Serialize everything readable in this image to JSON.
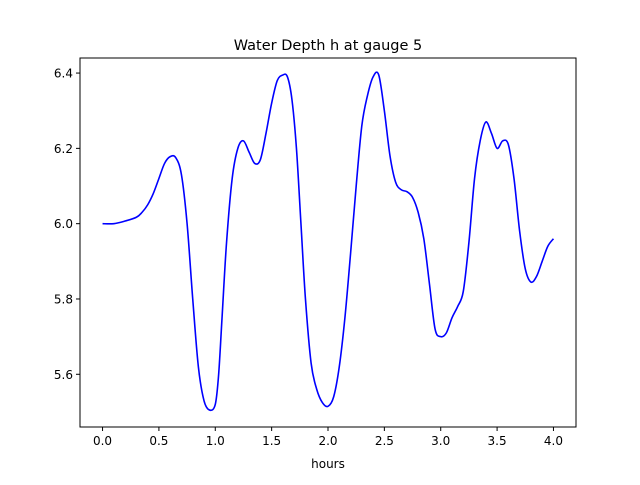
{
  "chart_data": {
    "type": "line",
    "title": "Water Depth h at gauge 5",
    "xlabel": "hours",
    "ylabel": "",
    "xlim": [
      -0.2,
      4.2
    ],
    "ylim": [
      5.46,
      6.44
    ],
    "x_ticks": [
      0.0,
      0.5,
      1.0,
      1.5,
      2.0,
      2.5,
      3.0,
      3.5,
      4.0
    ],
    "x_tick_labels": [
      "0.0",
      "0.5",
      "1.0",
      "1.5",
      "2.0",
      "2.5",
      "3.0",
      "3.5",
      "4.0"
    ],
    "y_ticks": [
      5.6,
      5.8,
      6.0,
      6.2,
      6.4
    ],
    "y_tick_labels": [
      "5.6",
      "5.8",
      "6.0",
      "6.2",
      "6.4"
    ],
    "grid": false,
    "legend": "none",
    "series": [
      {
        "color": "#0000ff",
        "x": [
          0.0,
          0.1,
          0.2,
          0.3,
          0.35,
          0.4,
          0.45,
          0.5,
          0.55,
          0.6,
          0.65,
          0.7,
          0.75,
          0.8,
          0.85,
          0.9,
          0.95,
          1.0,
          1.03,
          1.06,
          1.1,
          1.15,
          1.2,
          1.25,
          1.3,
          1.35,
          1.4,
          1.45,
          1.5,
          1.55,
          1.6,
          1.64,
          1.68,
          1.72,
          1.76,
          1.8,
          1.85,
          1.9,
          1.95,
          2.0,
          2.05,
          2.1,
          2.15,
          2.2,
          2.25,
          2.3,
          2.35,
          2.4,
          2.45,
          2.5,
          2.55,
          2.6,
          2.65,
          2.7,
          2.75,
          2.8,
          2.85,
          2.9,
          2.95,
          3.0,
          3.05,
          3.1,
          3.15,
          3.2,
          3.25,
          3.3,
          3.35,
          3.4,
          3.45,
          3.5,
          3.55,
          3.6,
          3.65,
          3.7,
          3.75,
          3.8,
          3.85,
          3.9,
          3.95,
          4.0
        ],
        "y": [
          6.0,
          6.0,
          6.007,
          6.017,
          6.03,
          6.05,
          6.08,
          6.12,
          6.16,
          6.178,
          6.175,
          6.13,
          6.0,
          5.8,
          5.62,
          5.53,
          5.505,
          5.52,
          5.6,
          5.75,
          5.95,
          6.12,
          6.2,
          6.22,
          6.19,
          6.16,
          6.17,
          6.24,
          6.32,
          6.38,
          6.395,
          6.39,
          6.33,
          6.2,
          6.0,
          5.8,
          5.63,
          5.56,
          5.525,
          5.515,
          5.54,
          5.62,
          5.75,
          5.92,
          6.1,
          6.26,
          6.34,
          6.39,
          6.395,
          6.3,
          6.18,
          6.11,
          6.09,
          6.085,
          6.07,
          6.03,
          5.96,
          5.84,
          5.72,
          5.7,
          5.71,
          5.75,
          5.78,
          5.82,
          5.95,
          6.12,
          6.22,
          6.27,
          6.24,
          6.2,
          6.22,
          6.21,
          6.12,
          5.98,
          5.88,
          5.845,
          5.86,
          5.9,
          5.94,
          5.96
        ]
      }
    ]
  }
}
